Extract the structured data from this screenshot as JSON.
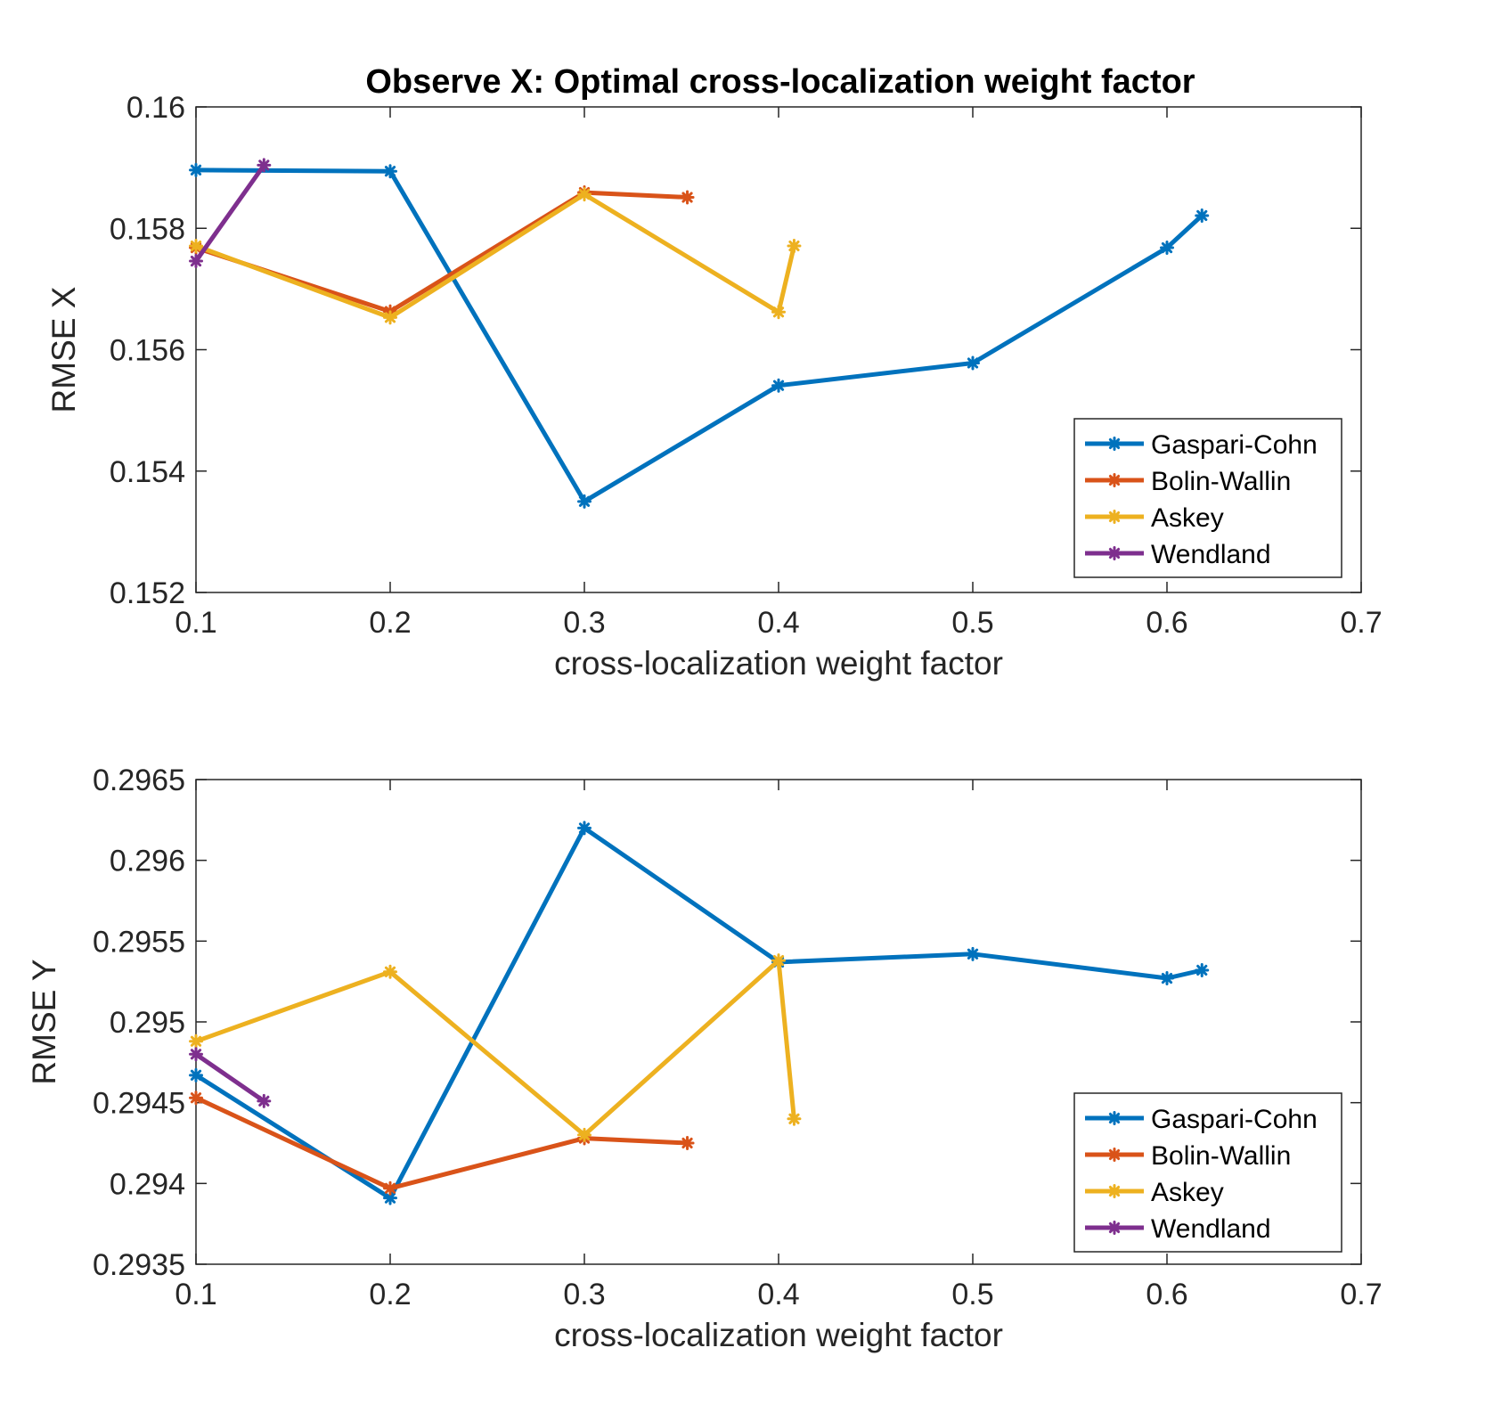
{
  "figure_title": "Observe X: Optimal cross-localization weight factor",
  "colors": {
    "Gaspari-Cohn": "#0072BD",
    "Bolin-Wallin": "#D95319",
    "Askey": "#EDB120",
    "Wendland": "#7E2F8E"
  },
  "chart_data": [
    {
      "type": "line",
      "title": "Observe X: Optimal cross-localization weight factor",
      "xlabel": "cross-localization weight factor",
      "ylabel": "RMSE X",
      "xlim": [
        0.1,
        0.7
      ],
      "ylim": [
        0.152,
        0.16
      ],
      "xticks": [
        "0.1",
        "0.2",
        "0.3",
        "0.4",
        "0.5",
        "0.6",
        "0.7"
      ],
      "yticks": [
        "0.152",
        "0.154",
        "0.156",
        "0.158",
        "0.16"
      ],
      "grid": false,
      "legend_position": "bottom-right",
      "marker": "asterisk",
      "series": [
        {
          "name": "Gaspari-Cohn",
          "x": [
            0.1,
            0.2,
            0.3,
            0.4,
            0.5,
            0.6,
            0.618
          ],
          "y": [
            0.15896,
            0.15894,
            0.1535,
            0.15541,
            0.15578,
            0.15768,
            0.15821
          ]
        },
        {
          "name": "Bolin-Wallin",
          "x": [
            0.1,
            0.2,
            0.3,
            0.353
          ],
          "y": [
            0.15768,
            0.15663,
            0.15859,
            0.15851
          ]
        },
        {
          "name": "Askey",
          "x": [
            0.1,
            0.2,
            0.3,
            0.4,
            0.408
          ],
          "y": [
            0.15771,
            0.15653,
            0.15856,
            0.15662,
            0.15771
          ]
        },
        {
          "name": "Wendland",
          "x": [
            0.1,
            0.135
          ],
          "y": [
            0.15746,
            0.15904
          ]
        }
      ]
    },
    {
      "type": "line",
      "title": "",
      "xlabel": "cross-localization weight factor",
      "ylabel": "RMSE Y",
      "xlim": [
        0.1,
        0.7
      ],
      "ylim": [
        0.2935,
        0.2965
      ],
      "xticks": [
        "0.1",
        "0.2",
        "0.3",
        "0.4",
        "0.5",
        "0.6",
        "0.7"
      ],
      "yticks": [
        "0.2935",
        "0.294",
        "0.2945",
        "0.295",
        "0.2955",
        "0.296",
        "0.2965"
      ],
      "grid": false,
      "legend_position": "bottom-right",
      "marker": "asterisk",
      "series": [
        {
          "name": "Gaspari-Cohn",
          "x": [
            0.1,
            0.2,
            0.3,
            0.4,
            0.5,
            0.6,
            0.618
          ],
          "y": [
            0.29467,
            0.29391,
            0.2962,
            0.29537,
            0.29542,
            0.29527,
            0.29532
          ]
        },
        {
          "name": "Bolin-Wallin",
          "x": [
            0.1,
            0.2,
            0.3,
            0.353
          ],
          "y": [
            0.29453,
            0.29397,
            0.29428,
            0.29425
          ]
        },
        {
          "name": "Askey",
          "x": [
            0.1,
            0.2,
            0.3,
            0.4,
            0.408
          ],
          "y": [
            0.29488,
            0.29531,
            0.2943,
            0.29538,
            0.2944
          ]
        },
        {
          "name": "Wendland",
          "x": [
            0.1,
            0.135
          ],
          "y": [
            0.2948,
            0.29451
          ]
        }
      ]
    }
  ]
}
